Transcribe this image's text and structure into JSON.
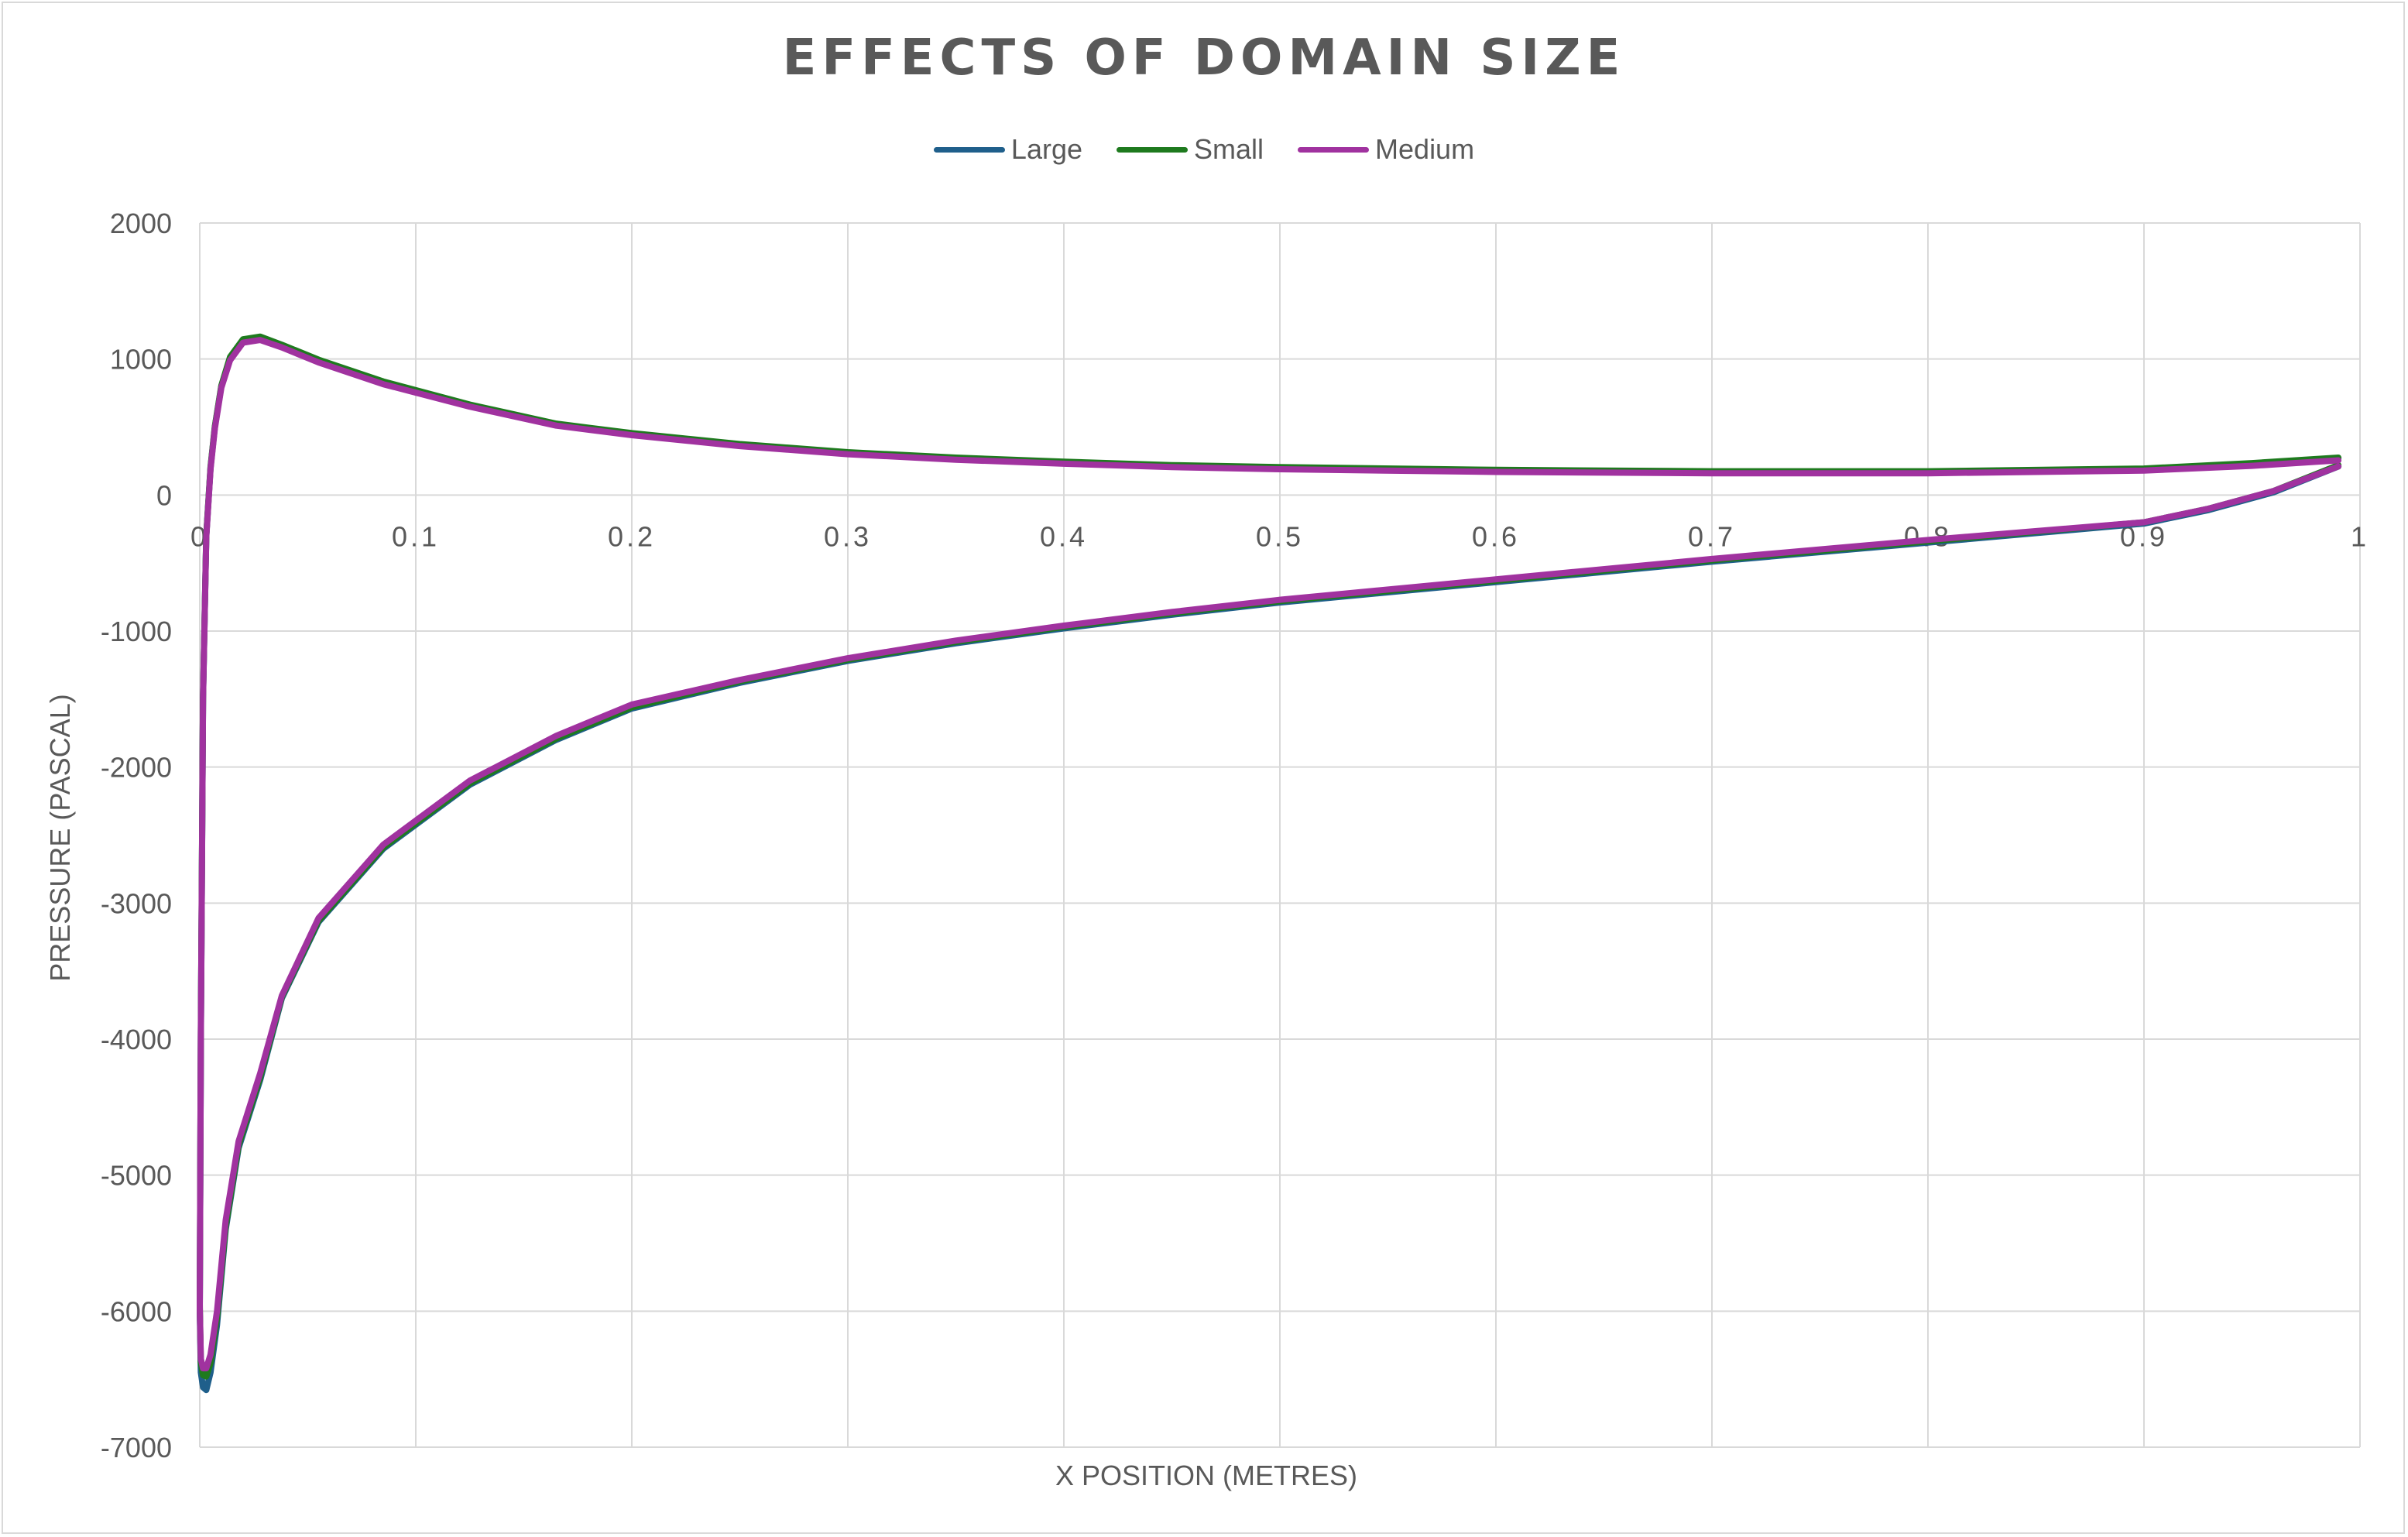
{
  "chart_data": {
    "type": "line",
    "title": "EFFECTS OF DOMAIN SIZE",
    "xlabel": "X POSITION (METRES)",
    "ylabel": "PRESSURE (PASCAL)",
    "xlim": [
      0,
      1
    ],
    "ylim": [
      -7000,
      2000
    ],
    "xticks": [
      "0",
      "0.1",
      "0.2",
      "0.3",
      "0.4",
      "0.5",
      "0.6",
      "0.7",
      "0.8",
      "0.9",
      "1"
    ],
    "yticks": [
      "2000",
      "1000",
      "0",
      "-1000",
      "-2000",
      "-3000",
      "-4000",
      "-5000",
      "-6000",
      "-7000"
    ],
    "grid": true,
    "legend_position": "top",
    "series": [
      {
        "name": "Large",
        "color": "#1f5f8b",
        "x": [
          0.99,
          0.95,
          0.9,
          0.8,
          0.7,
          0.6,
          0.5,
          0.45,
          0.4,
          0.35,
          0.3,
          0.25,
          0.2,
          0.165,
          0.125,
          0.085,
          0.055,
          0.038,
          0.028,
          0.02,
          0.014,
          0.01,
          0.007,
          0.005,
          0.003,
          0.0015,
          0.0005,
          0.0,
          0.0005,
          0.0015,
          0.003,
          0.005,
          0.008,
          0.012,
          0.018,
          0.028,
          0.038,
          0.055,
          0.085,
          0.125,
          0.165,
          0.2,
          0.25,
          0.3,
          0.35,
          0.4,
          0.45,
          0.5,
          0.6,
          0.7,
          0.8,
          0.9,
          0.93,
          0.96,
          0.99
        ],
        "y": [
          270,
          230,
          190,
          170,
          170,
          180,
          200,
          215,
          240,
          270,
          310,
          370,
          450,
          520,
          660,
          830,
          990,
          1100,
          1160,
          1140,
          1010,
          800,
          500,
          200,
          -300,
          -1500,
          -4000,
          -6000,
          -6450,
          -6560,
          -6580,
          -6450,
          -6100,
          -5400,
          -4800,
          -4300,
          -3700,
          -3140,
          -2600,
          -2130,
          -1800,
          -1570,
          -1380,
          -1220,
          -1090,
          -980,
          -880,
          -790,
          -640,
          -490,
          -350,
          -210,
          -110,
          20,
          210
        ]
      },
      {
        "name": "Small",
        "color": "#1e7a1e",
        "x": [
          0.99,
          0.95,
          0.9,
          0.8,
          0.7,
          0.6,
          0.5,
          0.45,
          0.4,
          0.35,
          0.3,
          0.25,
          0.2,
          0.165,
          0.125,
          0.085,
          0.055,
          0.038,
          0.028,
          0.02,
          0.014,
          0.01,
          0.007,
          0.005,
          0.003,
          0.0015,
          0.0005,
          0.0,
          0.0005,
          0.0015,
          0.003,
          0.005,
          0.008,
          0.012,
          0.018,
          0.028,
          0.038,
          0.055,
          0.085,
          0.125,
          0.165,
          0.2,
          0.25,
          0.3,
          0.35,
          0.4,
          0.45,
          0.5,
          0.6,
          0.7,
          0.8,
          0.9,
          0.93,
          0.96,
          0.99
        ],
        "y": [
          275,
          235,
          195,
          175,
          175,
          185,
          205,
          220,
          245,
          275,
          315,
          375,
          455,
          525,
          665,
          835,
          995,
          1105,
          1165,
          1145,
          1015,
          805,
          505,
          205,
          -295,
          -1480,
          -3950,
          -5950,
          -6380,
          -6470,
          -6480,
          -6380,
          -6050,
          -5380,
          -4780,
          -4280,
          -3690,
          -3130,
          -2590,
          -2120,
          -1790,
          -1560,
          -1370,
          -1210,
          -1080,
          -970,
          -870,
          -780,
          -630,
          -480,
          -340,
          -200,
          -100,
          30,
          220
        ]
      },
      {
        "name": "Medium",
        "color": "#a0329f",
        "x": [
          0.99,
          0.95,
          0.9,
          0.8,
          0.7,
          0.6,
          0.5,
          0.45,
          0.4,
          0.35,
          0.3,
          0.25,
          0.2,
          0.165,
          0.125,
          0.085,
          0.055,
          0.038,
          0.028,
          0.02,
          0.014,
          0.01,
          0.007,
          0.005,
          0.003,
          0.0015,
          0.0005,
          0.0,
          0.0005,
          0.0015,
          0.003,
          0.005,
          0.008,
          0.012,
          0.018,
          0.028,
          0.038,
          0.055,
          0.085,
          0.125,
          0.165,
          0.2,
          0.25,
          0.3,
          0.35,
          0.4,
          0.45,
          0.5,
          0.6,
          0.7,
          0.8,
          0.9,
          0.93,
          0.96,
          0.99
        ],
        "y": [
          255,
          215,
          180,
          160,
          160,
          170,
          190,
          205,
          230,
          260,
          300,
          360,
          440,
          510,
          650,
          815,
          975,
          1085,
          1140,
          1120,
          990,
          790,
          490,
          190,
          -310,
          -1500,
          -3980,
          -5980,
          -6350,
          -6420,
          -6420,
          -6320,
          -6000,
          -5330,
          -4750,
          -4250,
          -3680,
          -3110,
          -2570,
          -2100,
          -1770,
          -1540,
          -1360,
          -1200,
          -1070,
          -960,
          -860,
          -770,
          -620,
          -470,
          -330,
          -200,
          -100,
          30,
          210
        ]
      }
    ]
  }
}
